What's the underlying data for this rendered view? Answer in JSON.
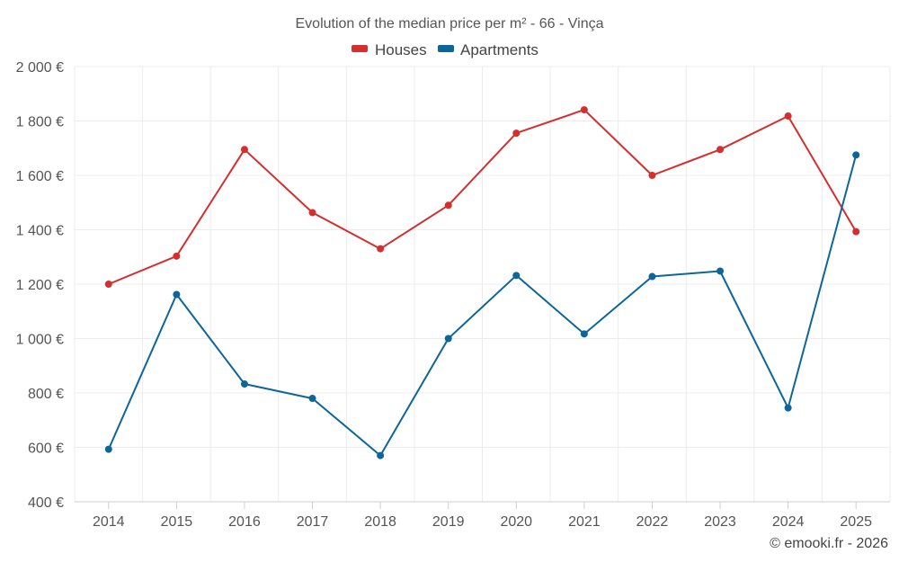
{
  "chart_data": {
    "type": "line",
    "title": "Evolution of the median price per m² - 66 - Vinça",
    "categories": [
      "2014",
      "2015",
      "2016",
      "2017",
      "2018",
      "2019",
      "2020",
      "2021",
      "2022",
      "2023",
      "2024",
      "2025"
    ],
    "series": [
      {
        "name": "Houses",
        "color": "#d32f2f",
        "values": [
          1200,
          1303,
          1695,
          1463,
          1330,
          1490,
          1755,
          1841,
          1600,
          1695,
          1818,
          1393
        ]
      },
      {
        "name": "Apartments",
        "color": "#0d6699",
        "values": [
          593,
          1162,
          833,
          780,
          570,
          1000,
          1232,
          1017,
          1228,
          1248,
          745,
          1675
        ]
      }
    ],
    "yticks": [
      400,
      600,
      800,
      1000,
      1200,
      1400,
      1600,
      1800,
      2000
    ],
    "ytick_labels": [
      "400 €",
      "600 €",
      "800 €",
      "1 000 €",
      "1 200 €",
      "1 400 €",
      "1 600 €",
      "1 800 €",
      "2 000 €"
    ],
    "ylim": [
      400,
      2000
    ],
    "xlabel": "",
    "ylabel": "",
    "grid": true,
    "legend_position": "top-center"
  },
  "credit": "© emooki.fr - 2026"
}
